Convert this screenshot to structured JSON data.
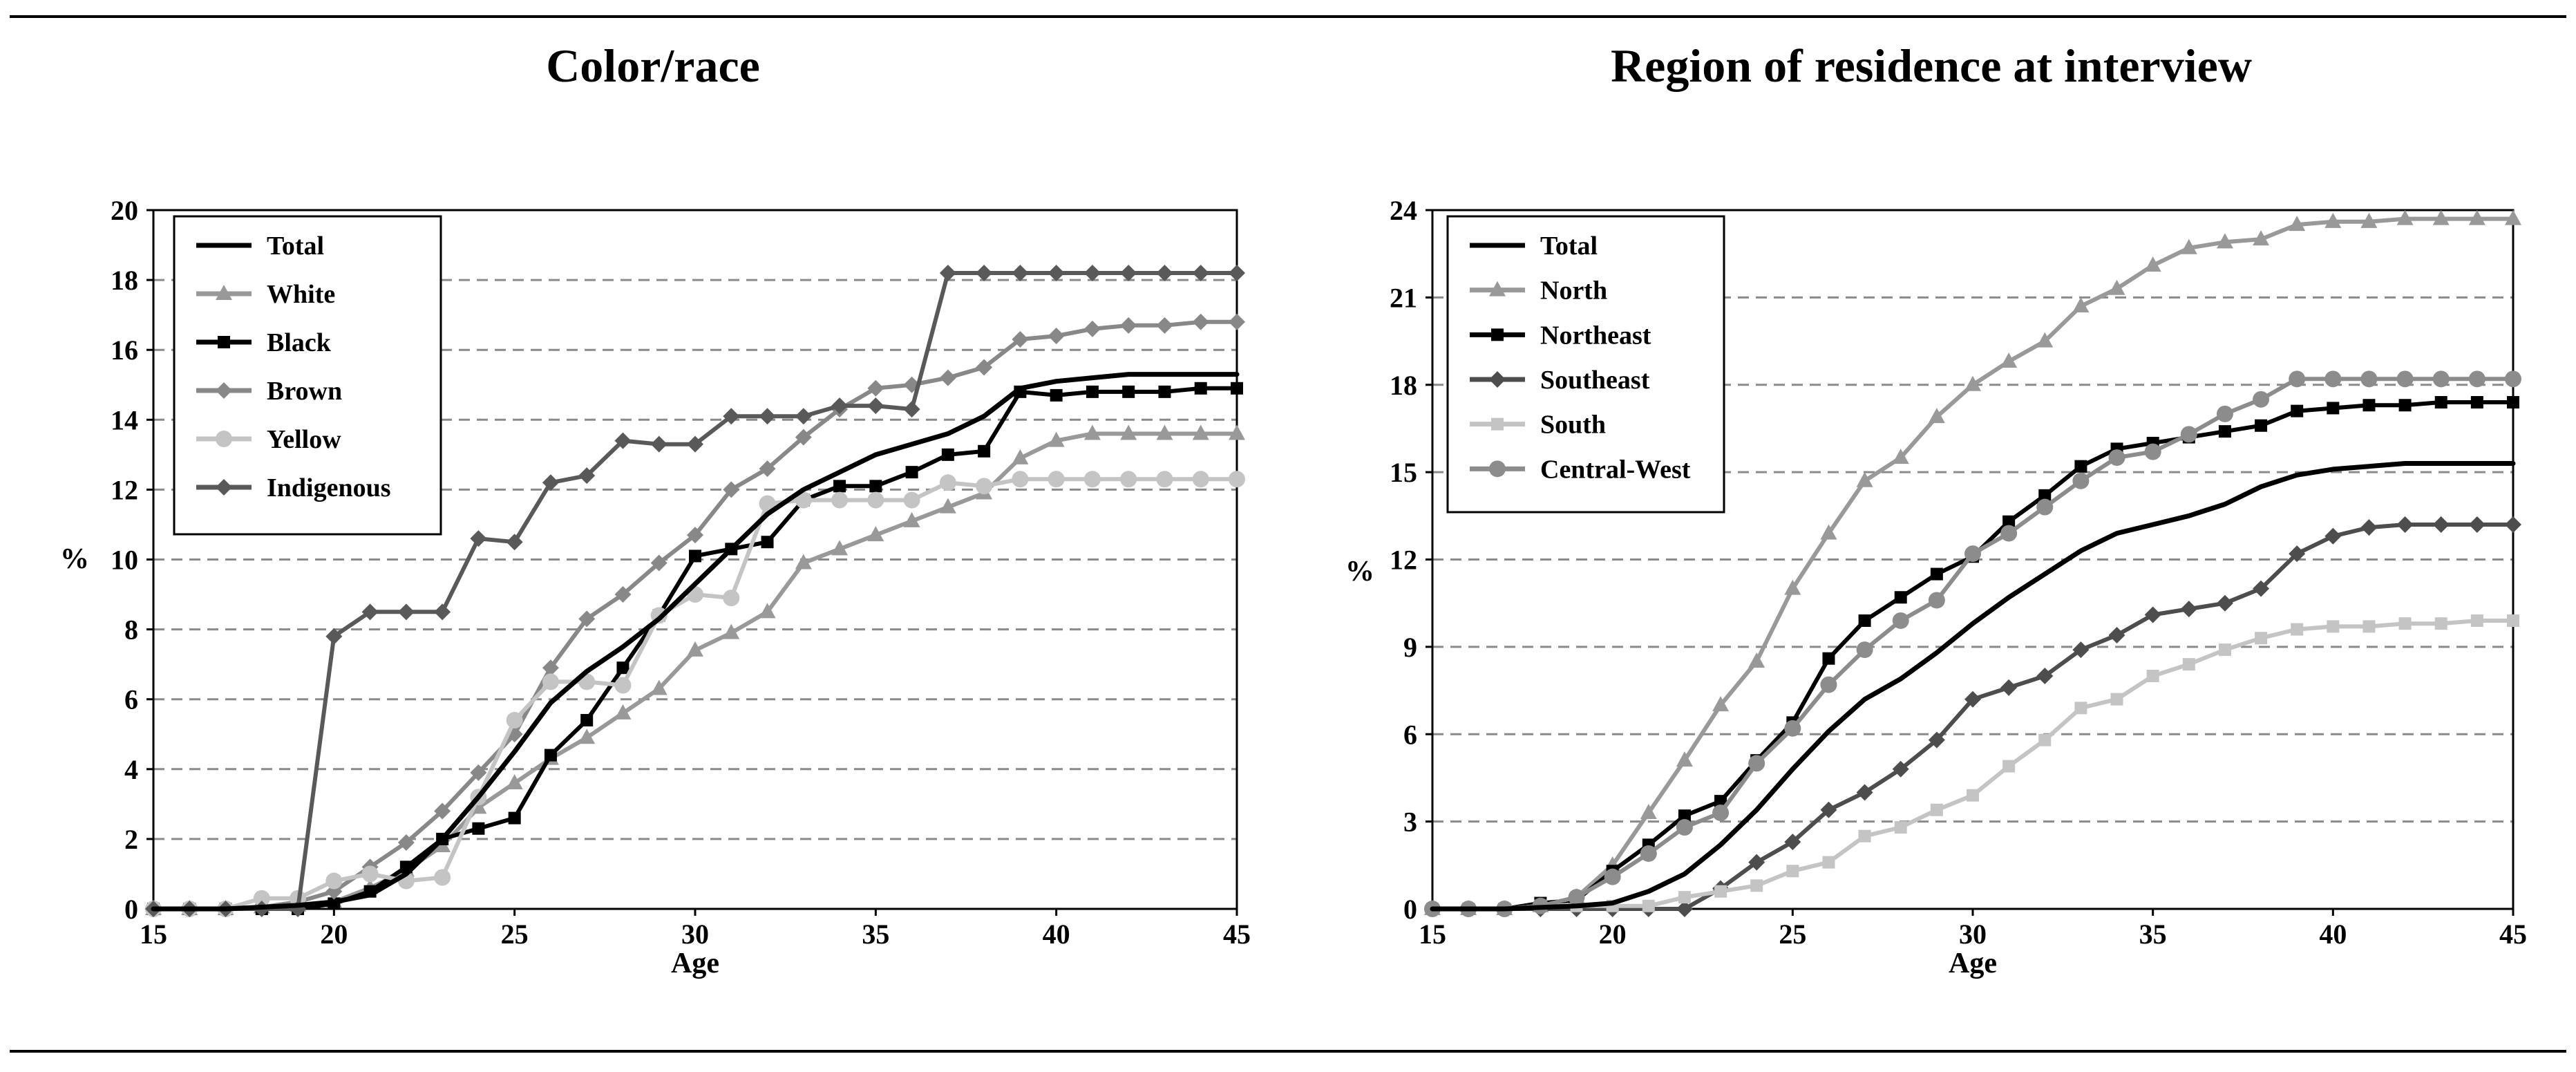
{
  "chart_data": [
    {
      "type": "line",
      "title": "Color/race",
      "xlabel": "Age",
      "ylabel": "%",
      "xlim": [
        15,
        45
      ],
      "ylim": [
        0,
        20
      ],
      "xticks": [
        15,
        20,
        25,
        30,
        35,
        40,
        45
      ],
      "yticks": [
        0,
        2,
        4,
        6,
        8,
        10,
        12,
        14,
        16,
        18,
        20
      ],
      "grid": "horizontal dashed",
      "legend": "top-left",
      "x": [
        15,
        16,
        17,
        18,
        19,
        20,
        21,
        22,
        23,
        24,
        25,
        26,
        27,
        28,
        29,
        30,
        31,
        32,
        33,
        34,
        35,
        36,
        37,
        38,
        39,
        40,
        41,
        42,
        43,
        44,
        45
      ],
      "series": [
        {
          "name": "Total",
          "color": "#000000",
          "marker": "none",
          "values": [
            0,
            0,
            0,
            0.05,
            0.1,
            0.2,
            0.4,
            1.0,
            2.0,
            3.2,
            4.5,
            5.9,
            6.8,
            7.5,
            8.3,
            9.3,
            10.3,
            11.3,
            12.0,
            12.5,
            13.0,
            13.3,
            13.6,
            14.1,
            14.9,
            15.1,
            15.2,
            15.3,
            15.3,
            15.3,
            15.3
          ]
        },
        {
          "name": "White",
          "color": "#999999",
          "marker": "triangle",
          "values": [
            0,
            0,
            0,
            0.05,
            0.1,
            0.2,
            0.6,
            1.1,
            1.8,
            2.9,
            3.6,
            4.3,
            4.9,
            5.6,
            6.3,
            7.4,
            7.9,
            8.5,
            9.9,
            10.3,
            10.7,
            11.1,
            11.5,
            11.9,
            12.9,
            13.4,
            13.6,
            13.6,
            13.6,
            13.6,
            13.6
          ]
        },
        {
          "name": "Black",
          "color": "#000000",
          "marker": "square",
          "values": [
            0,
            0,
            0,
            0,
            0,
            0.15,
            0.5,
            1.2,
            2.0,
            2.3,
            2.6,
            4.4,
            5.4,
            6.9,
            8.4,
            10.1,
            10.3,
            10.5,
            11.7,
            12.1,
            12.1,
            12.5,
            13.0,
            13.1,
            14.8,
            14.7,
            14.8,
            14.8,
            14.8,
            14.9,
            14.9
          ]
        },
        {
          "name": "Brown",
          "color": "#888888",
          "marker": "diamond",
          "values": [
            0,
            0,
            0,
            0.05,
            0.2,
            0.5,
            1.2,
            1.9,
            2.8,
            3.9,
            5.0,
            6.9,
            8.3,
            9.0,
            9.9,
            10.7,
            12.0,
            12.6,
            13.5,
            14.3,
            14.9,
            15.0,
            15.2,
            15.5,
            16.3,
            16.4,
            16.6,
            16.7,
            16.7,
            16.8,
            16.8
          ]
        },
        {
          "name": "Yellow",
          "color": "#c4c4c4",
          "marker": "circle",
          "values": [
            0,
            0,
            0,
            0.3,
            0.3,
            0.8,
            1.0,
            0.8,
            0.9,
            3.2,
            5.4,
            6.5,
            6.5,
            6.4,
            8.4,
            9.0,
            8.9,
            11.6,
            11.7,
            11.7,
            11.7,
            11.7,
            12.2,
            12.1,
            12.3,
            12.3,
            12.3,
            12.3,
            12.3,
            12.3,
            12.3
          ]
        },
        {
          "name": "Indigenous",
          "color": "#595959",
          "marker": "diamond",
          "values": [
            0,
            0,
            0,
            0,
            0,
            7.8,
            8.5,
            8.5,
            8.5,
            10.6,
            10.5,
            12.2,
            12.4,
            13.4,
            13.3,
            13.3,
            14.1,
            14.1,
            14.1,
            14.4,
            14.4,
            14.3,
            18.2,
            18.2,
            18.2,
            18.2,
            18.2,
            18.2,
            18.2,
            18.2,
            18.2
          ]
        }
      ],
      "legend_entries": [
        "Total",
        "White",
        "Black",
        "Brown",
        "Yellow",
        "Indigenous"
      ]
    },
    {
      "type": "line",
      "title": "Region of residence at interview",
      "xlabel": "Age",
      "ylabel": "%",
      "xlim": [
        15,
        45
      ],
      "ylim": [
        0,
        24
      ],
      "xticks": [
        15,
        20,
        25,
        30,
        35,
        40,
        45
      ],
      "yticks": [
        0,
        3,
        6,
        9,
        12,
        15,
        18,
        21,
        24
      ],
      "grid": "horizontal dashed",
      "legend": "top-left",
      "x": [
        15,
        16,
        17,
        18,
        19,
        20,
        21,
        22,
        23,
        24,
        25,
        26,
        27,
        28,
        29,
        30,
        31,
        32,
        33,
        34,
        35,
        36,
        37,
        38,
        39,
        40,
        41,
        42,
        43,
        44,
        45
      ],
      "series": [
        {
          "name": "Total",
          "color": "#000000",
          "marker": "none",
          "values": [
            0,
            0,
            0,
            0.05,
            0.1,
            0.2,
            0.6,
            1.2,
            2.2,
            3.4,
            4.8,
            6.1,
            7.2,
            7.9,
            8.8,
            9.8,
            10.7,
            11.5,
            12.3,
            12.9,
            13.2,
            13.5,
            13.9,
            14.5,
            14.9,
            15.1,
            15.2,
            15.3,
            15.3,
            15.3,
            15.3
          ]
        },
        {
          "name": "North",
          "color": "#999999",
          "marker": "triangle",
          "values": [
            0,
            0,
            0,
            0.1,
            0.4,
            1.5,
            3.3,
            5.1,
            7.0,
            8.5,
            11.0,
            12.9,
            14.7,
            15.5,
            16.9,
            18.0,
            18.8,
            19.5,
            20.7,
            21.3,
            22.1,
            22.7,
            22.9,
            23.0,
            23.5,
            23.6,
            23.6,
            23.7,
            23.7,
            23.7,
            23.7
          ]
        },
        {
          "name": "Northeast",
          "color": "#000000",
          "marker": "square",
          "values": [
            0,
            0,
            0,
            0.2,
            0.3,
            1.3,
            2.2,
            3.2,
            3.7,
            5.1,
            6.4,
            8.6,
            9.9,
            10.7,
            11.5,
            12.1,
            13.3,
            14.2,
            15.2,
            15.8,
            16.0,
            16.2,
            16.4,
            16.6,
            17.1,
            17.2,
            17.3,
            17.3,
            17.4,
            17.4,
            17.4
          ]
        },
        {
          "name": "Southeast",
          "color": "#4d4d4d",
          "marker": "diamond",
          "values": [
            0,
            0,
            0,
            0,
            0,
            0,
            0,
            0,
            0.7,
            1.6,
            2.3,
            3.4,
            4.0,
            4.8,
            5.8,
            7.2,
            7.6,
            8.0,
            8.9,
            9.4,
            10.1,
            10.3,
            10.5,
            11.0,
            12.2,
            12.8,
            13.1,
            13.2,
            13.2,
            13.2,
            13.2
          ]
        },
        {
          "name": "South",
          "color": "#c4c4c4",
          "marker": "square",
          "values": [
            0,
            0,
            0,
            0.1,
            0.1,
            0.1,
            0.1,
            0.4,
            0.6,
            0.8,
            1.3,
            1.6,
            2.5,
            2.8,
            3.4,
            3.9,
            4.9,
            5.8,
            6.9,
            7.2,
            8.0,
            8.4,
            8.9,
            9.3,
            9.6,
            9.7,
            9.7,
            9.8,
            9.8,
            9.9,
            9.9
          ]
        },
        {
          "name": "Central-West",
          "color": "#8c8c8c",
          "marker": "circle",
          "values": [
            0,
            0,
            0,
            0.1,
            0.4,
            1.1,
            1.9,
            2.8,
            3.3,
            5.0,
            6.2,
            7.7,
            8.9,
            9.9,
            10.6,
            12.2,
            12.9,
            13.8,
            14.7,
            15.5,
            15.7,
            16.3,
            17.0,
            17.5,
            18.2,
            18.2,
            18.2,
            18.2,
            18.2,
            18.2,
            18.2
          ]
        }
      ],
      "legend_entries": [
        "Total",
        "North",
        "Northeast",
        "Southeast",
        "South",
        "Central-West"
      ]
    }
  ]
}
